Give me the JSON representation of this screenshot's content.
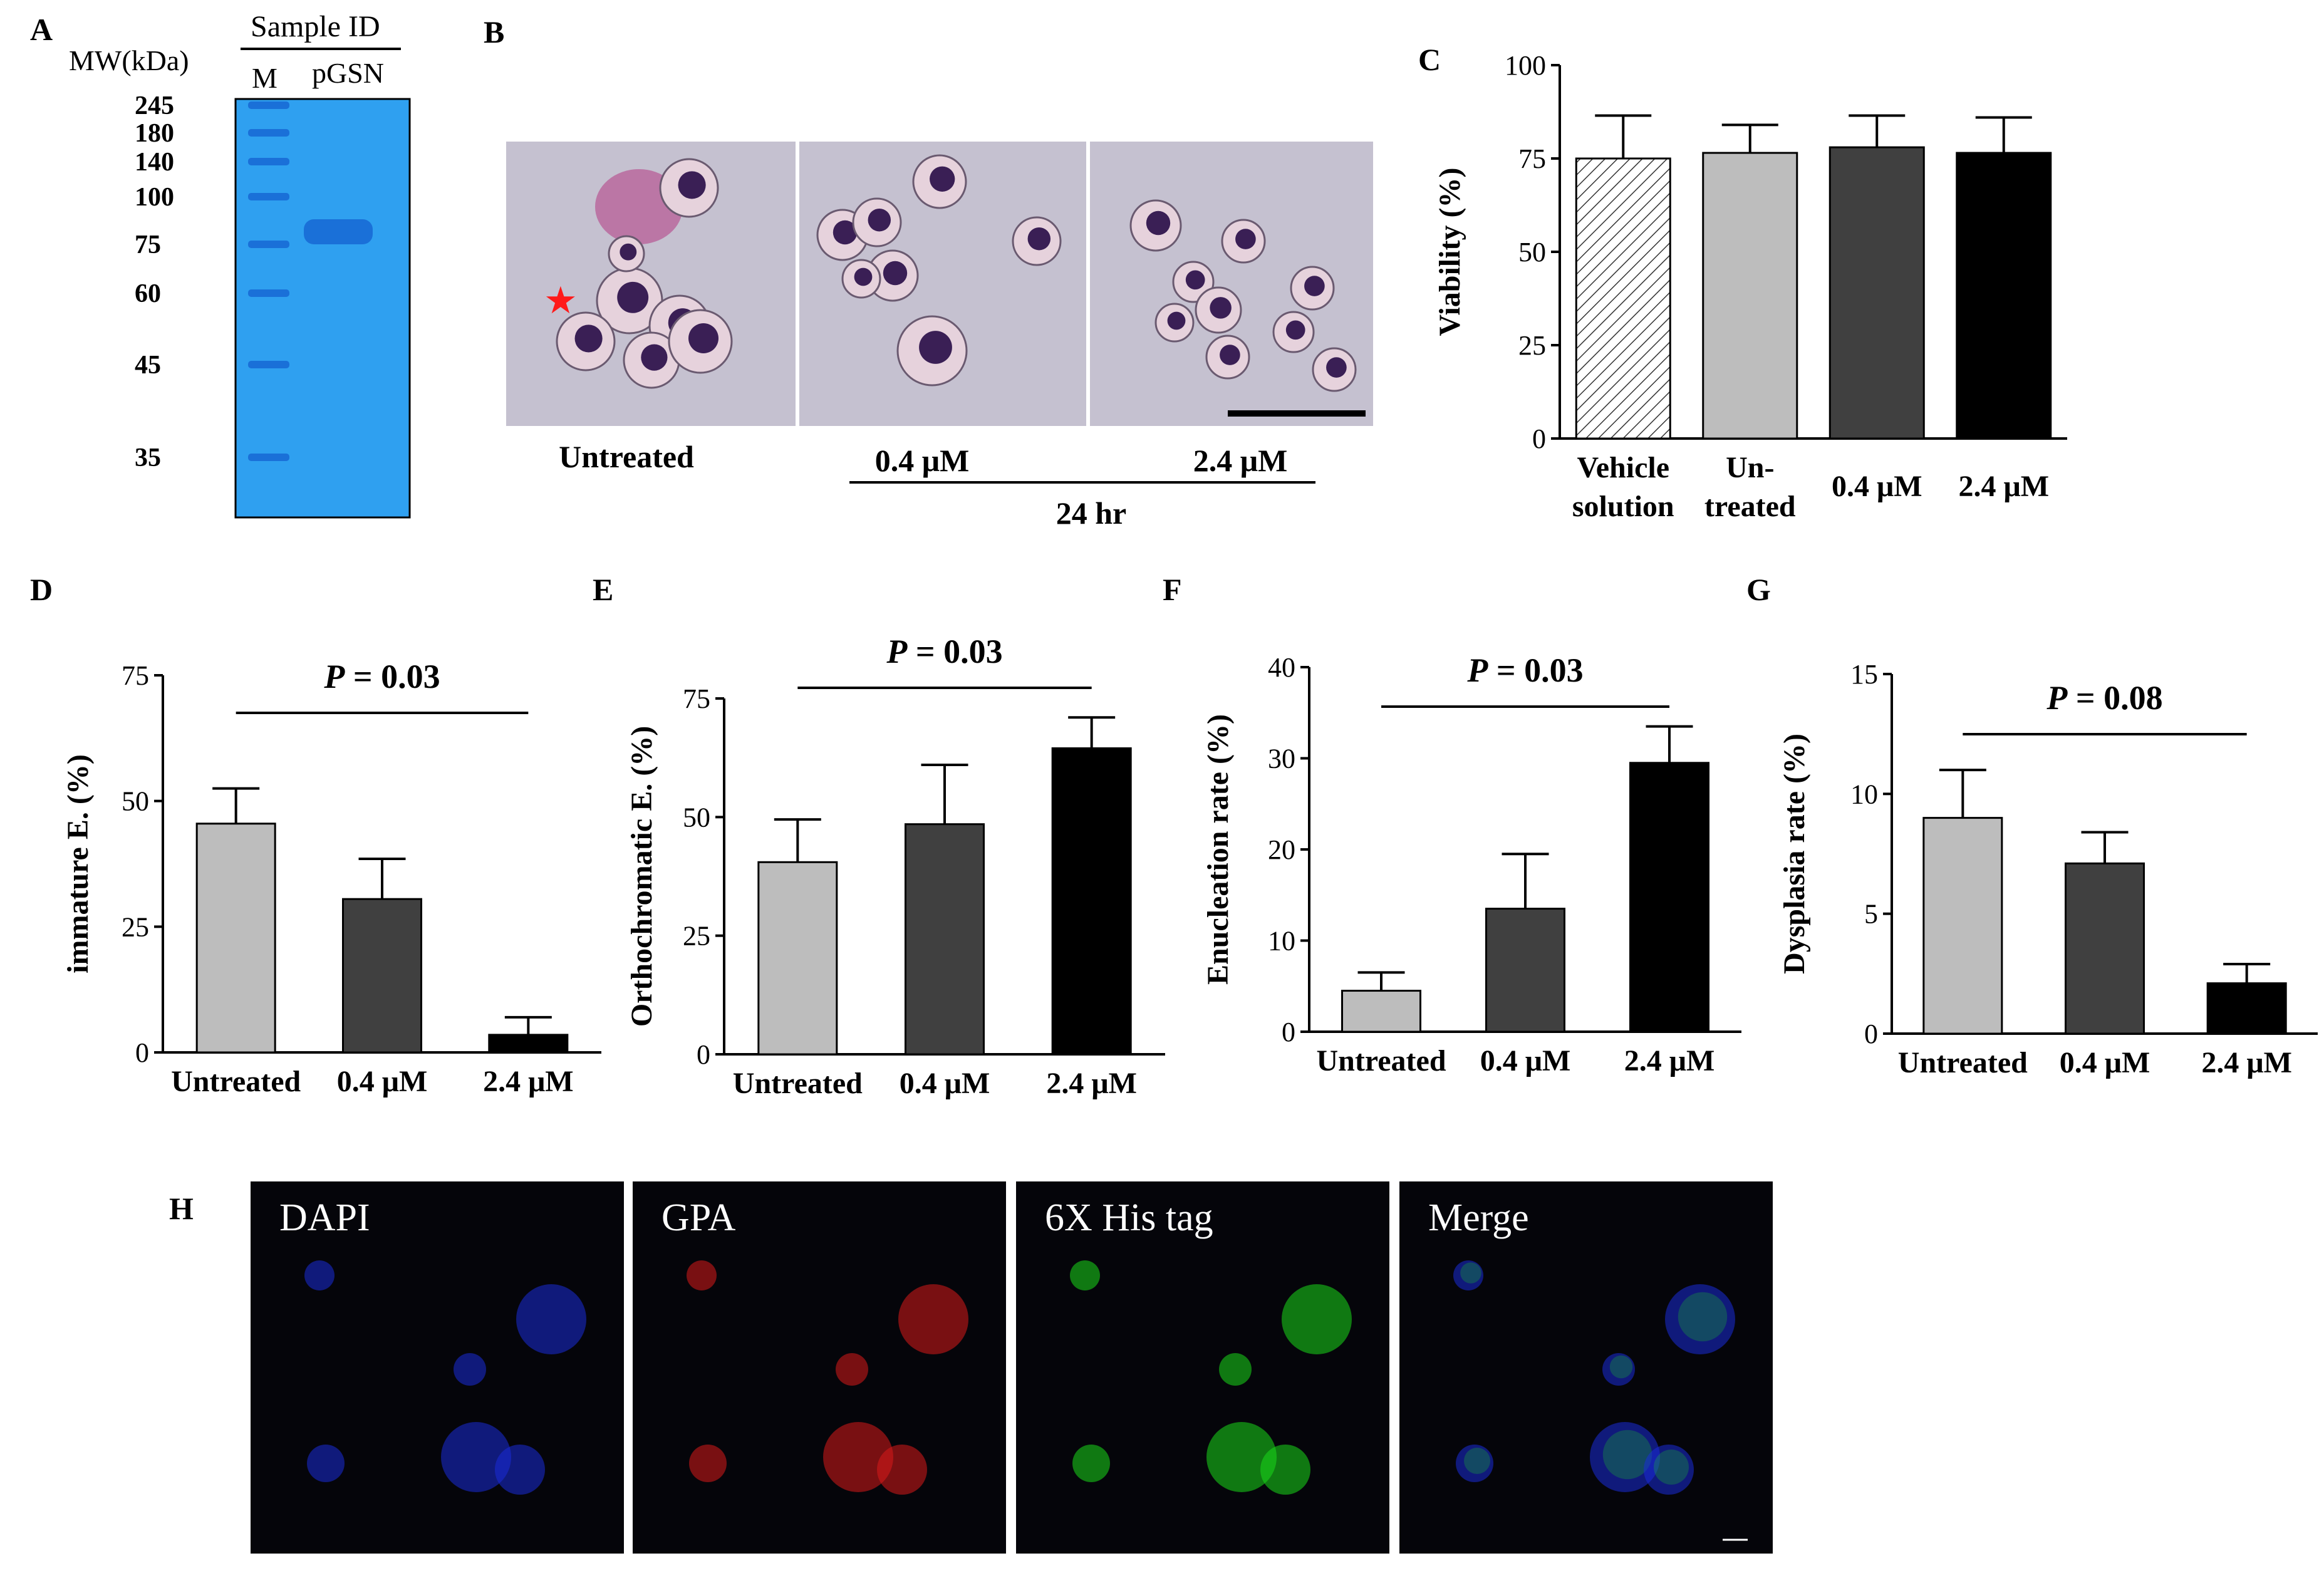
{
  "panel_letters": {
    "A": "A",
    "B": "B",
    "C": "C",
    "D": "D",
    "E": "E",
    "F": "F",
    "G": "G",
    "H": "H"
  },
  "colors": {
    "gel_blue": "#2fa0f0",
    "gel_band": "#1a70d8",
    "micro_bg": "#c5c1d0",
    "cell_purple": "#7a4c8a",
    "nucleus": "#3a1f55",
    "bar_light": "#bdbdbd",
    "bar_dark": "#404040",
    "bar_black": "#000000",
    "star": "#ff1a1a",
    "dapi": "#1a2bd8",
    "gpa": "#d81a1a",
    "his": "#1ad81a"
  },
  "panel_a": {
    "header": "Sample ID",
    "mw_label": "MW(kDa)",
    "lanes": [
      "M",
      "pGSN"
    ],
    "markers": [
      "245",
      "180",
      "140",
      "100",
      "75",
      "60",
      "45",
      "35"
    ]
  },
  "panel_b": {
    "labels": [
      "Untreated",
      "0.4 μM",
      "2.4 μM"
    ],
    "time_label": "24 hr",
    "star_glyph": "★"
  },
  "panel_c": {
    "chart_data": {
      "type": "bar",
      "categories": [
        [
          "Vehicle",
          "solution"
        ],
        [
          "Un-",
          "treated"
        ],
        [
          "0.4 μM"
        ],
        [
          "2.4 μM"
        ]
      ],
      "values": [
        75,
        76.5,
        78,
        76.5
      ],
      "errors": [
        11.5,
        7.5,
        8.5,
        9.5
      ],
      "fills": [
        "hatch",
        "light",
        "dark",
        "black"
      ],
      "ylabel": "Viability   (%)",
      "ylim": [
        0,
        100
      ],
      "yticks": [
        "0",
        "25",
        "50",
        "75",
        "100"
      ]
    }
  },
  "panel_d": {
    "chart_data": {
      "type": "bar",
      "categories": [
        "Untreated",
        "0.4 μM",
        "2.4 μM"
      ],
      "values": [
        45.5,
        30.5,
        3.5
      ],
      "errors": [
        7,
        8,
        3.5
      ],
      "ylabel": "immature  E.  (%)",
      "ylim": [
        0,
        75
      ],
      "yticks": [
        "0",
        "25",
        "50",
        "75"
      ],
      "pvalue": {
        "prefix": "P",
        "text": " = 0.03"
      }
    }
  },
  "panel_e": {
    "chart_data": {
      "type": "bar",
      "categories": [
        "Untreated",
        "0.4 μM",
        "2.4 μM"
      ],
      "values": [
        40.5,
        48.5,
        64.5
      ],
      "errors": [
        9,
        12.5,
        6.5
      ],
      "ylabel": "Orthochromatic  E.  (%)",
      "ylim": [
        0,
        75
      ],
      "yticks": [
        "0",
        "25",
        "50",
        "75"
      ],
      "pvalue": {
        "prefix": "P",
        "text": " = 0.03"
      }
    }
  },
  "panel_f": {
    "chart_data": {
      "type": "bar",
      "categories": [
        "Untreated",
        "0.4 μM",
        "2.4 μM"
      ],
      "values": [
        4.5,
        13.5,
        29.5
      ],
      "errors": [
        2,
        6,
        4
      ],
      "ylabel": "Enucleation  rate  (%)",
      "ylim": [
        0,
        40
      ],
      "yticks": [
        "0",
        "10",
        "20",
        "30",
        "40"
      ],
      "pvalue": {
        "prefix": "P",
        "text": " = 0.03"
      }
    }
  },
  "panel_g": {
    "chart_data": {
      "type": "bar",
      "categories": [
        "Untreated",
        "0.4 μM",
        "2.4 μM"
      ],
      "values": [
        9,
        7.1,
        2.1
      ],
      "errors": [
        2,
        1.3,
        0.8
      ],
      "ylabel": "Dysplasia rate  (%)",
      "ylim": [
        0,
        15
      ],
      "yticks": [
        "0",
        "5",
        "10",
        "15"
      ],
      "pvalue": {
        "prefix": "P",
        "text": " = 0.08"
      }
    }
  },
  "panel_h": {
    "channels": [
      "DAPI",
      "GPA",
      "6X His tag",
      "Merge"
    ]
  }
}
